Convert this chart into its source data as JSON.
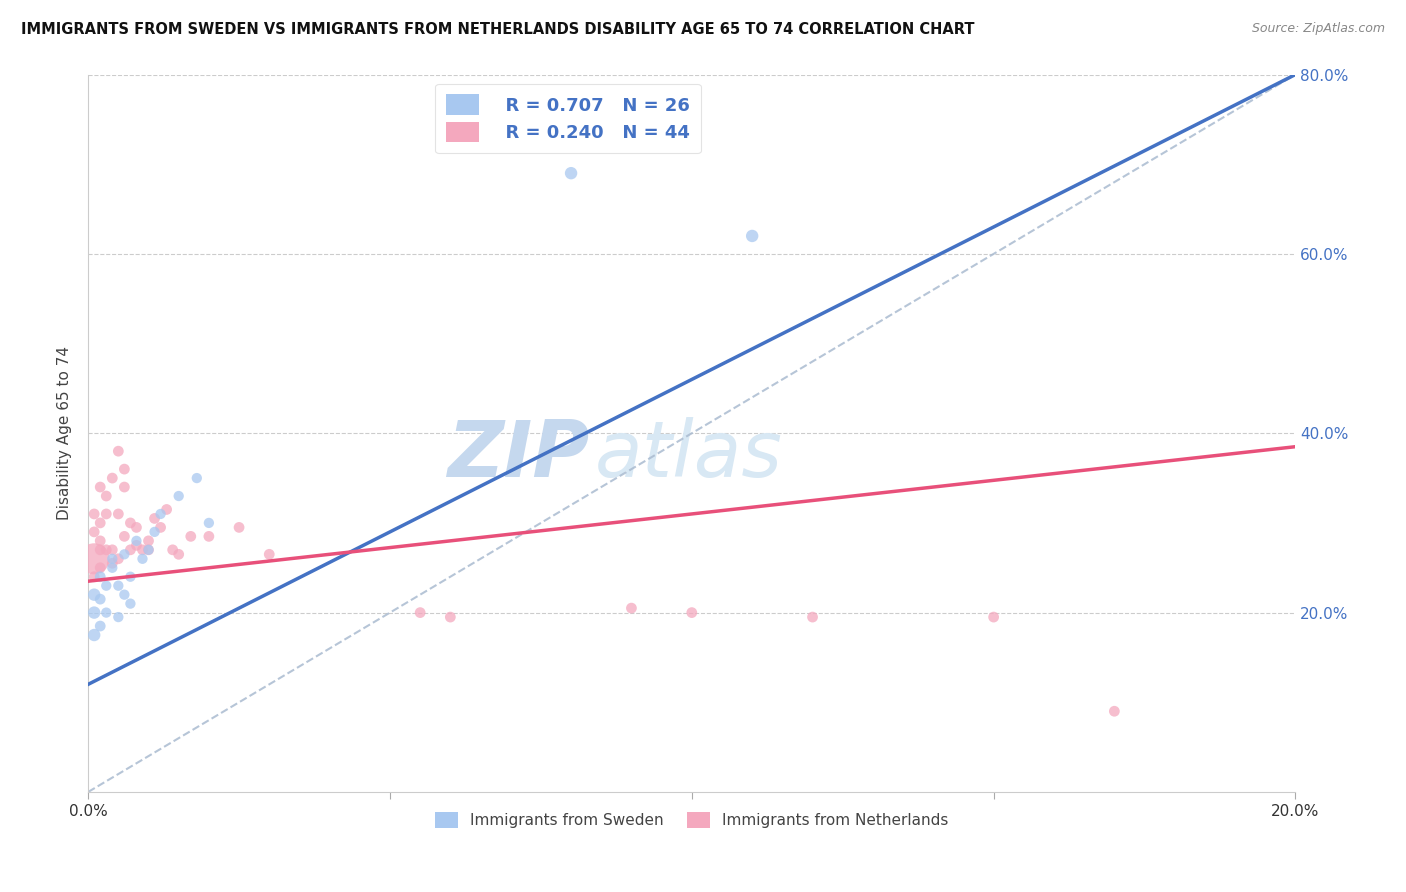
{
  "title": "IMMIGRANTS FROM SWEDEN VS IMMIGRANTS FROM NETHERLANDS DISABILITY AGE 65 TO 74 CORRELATION CHART",
  "source": "Source: ZipAtlas.com",
  "ylabel": "Disability Age 65 to 74",
  "xlabel_legend1": "Immigrants from Sweden",
  "xlabel_legend2": "Immigrants from Netherlands",
  "xlim": [
    0.0,
    0.2
  ],
  "ylim": [
    0.0,
    0.8
  ],
  "R_sweden": 0.707,
  "N_sweden": 26,
  "R_netherlands": 0.24,
  "N_netherlands": 44,
  "color_sweden": "#A8C8F0",
  "color_netherlands": "#F4A8BE",
  "color_sweden_line": "#4472C4",
  "color_netherlands_line": "#E8507A",
  "legend_text_color": "#4472C4",
  "watermark_color": "#D0E4F8",
  "sweden_line_x": [
    0.0,
    0.2
  ],
  "sweden_line_y": [
    0.12,
    0.8
  ],
  "netherlands_line_x": [
    0.0,
    0.2
  ],
  "netherlands_line_y": [
    0.235,
    0.385
  ],
  "diag_line_x": [
    0.0,
    0.2
  ],
  "diag_line_y": [
    0.0,
    0.8
  ],
  "sweden_x": [
    0.001,
    0.001,
    0.001,
    0.002,
    0.002,
    0.002,
    0.003,
    0.003,
    0.004,
    0.004,
    0.005,
    0.005,
    0.006,
    0.006,
    0.007,
    0.007,
    0.008,
    0.009,
    0.01,
    0.011,
    0.012,
    0.015,
    0.018,
    0.02,
    0.08,
    0.11
  ],
  "sweden_y": [
    0.22,
    0.2,
    0.175,
    0.24,
    0.215,
    0.185,
    0.23,
    0.2,
    0.25,
    0.26,
    0.195,
    0.23,
    0.22,
    0.265,
    0.24,
    0.21,
    0.28,
    0.26,
    0.27,
    0.29,
    0.31,
    0.33,
    0.35,
    0.3,
    0.69,
    0.62
  ],
  "sweden_size": [
    80,
    80,
    80,
    60,
    60,
    60,
    55,
    55,
    55,
    55,
    55,
    55,
    55,
    55,
    55,
    55,
    55,
    55,
    55,
    55,
    55,
    55,
    55,
    55,
    80,
    80
  ],
  "netherlands_x": [
    0.001,
    0.001,
    0.001,
    0.001,
    0.002,
    0.002,
    0.002,
    0.002,
    0.002,
    0.003,
    0.003,
    0.003,
    0.004,
    0.004,
    0.004,
    0.005,
    0.005,
    0.005,
    0.006,
    0.006,
    0.006,
    0.007,
    0.007,
    0.008,
    0.008,
    0.009,
    0.01,
    0.01,
    0.011,
    0.012,
    0.013,
    0.014,
    0.015,
    0.017,
    0.02,
    0.025,
    0.03,
    0.055,
    0.06,
    0.09,
    0.1,
    0.12,
    0.15,
    0.17
  ],
  "netherlands_y": [
    0.26,
    0.24,
    0.31,
    0.29,
    0.34,
    0.3,
    0.28,
    0.27,
    0.25,
    0.33,
    0.31,
    0.27,
    0.35,
    0.27,
    0.255,
    0.31,
    0.26,
    0.38,
    0.36,
    0.34,
    0.285,
    0.3,
    0.27,
    0.295,
    0.275,
    0.27,
    0.27,
    0.28,
    0.305,
    0.295,
    0.315,
    0.27,
    0.265,
    0.285,
    0.285,
    0.295,
    0.265,
    0.2,
    0.195,
    0.205,
    0.2,
    0.195,
    0.195,
    0.09
  ],
  "netherlands_size": [
    500,
    60,
    60,
    60,
    60,
    60,
    60,
    60,
    60,
    60,
    60,
    60,
    60,
    60,
    60,
    60,
    60,
    60,
    60,
    60,
    60,
    60,
    60,
    60,
    60,
    60,
    60,
    60,
    60,
    60,
    60,
    60,
    60,
    60,
    60,
    60,
    60,
    60,
    60,
    60,
    60,
    60,
    60,
    60
  ]
}
